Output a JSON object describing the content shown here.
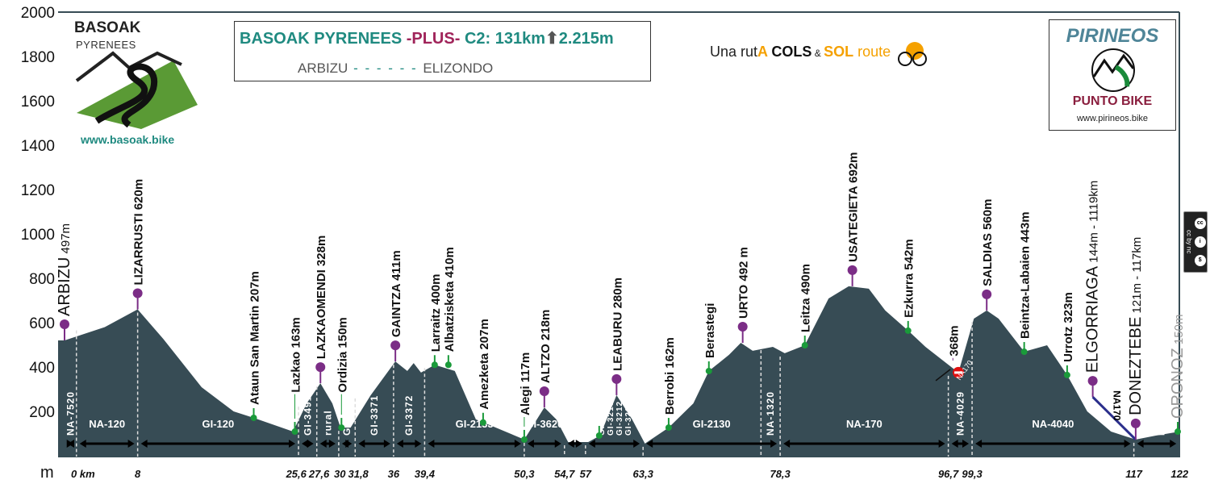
{
  "header": {
    "basoak_logo": {
      "name": "BASOAK",
      "sub": "PYRENEES",
      "url": "www.basoak.bike"
    },
    "title": {
      "part1": "BASOAK PYRENEES ",
      "plus": "-PLUS-",
      "part2": " C2: 131km",
      "arrow_icon": "up-arrow-icon",
      "part3": "2.215m"
    },
    "route": {
      "from": "ARBIZU",
      "dashes": " - - - - - - ",
      "to": "ELIZONDO"
    },
    "tagline": {
      "a": "Una rut",
      "b": "A ",
      "c": "COLS",
      "d": " & ",
      "e": "SOL",
      "f": " route"
    },
    "pirineos_logo": {
      "title": "PIRINEOS",
      "sub": "PUNTO BIKE",
      "url": "www.pirineos.bike"
    },
    "license_badge": {
      "text": "cc by nc",
      "icons": [
        "cc-icon",
        "by-icon",
        "nc-icon"
      ]
    }
  },
  "colors": {
    "profile": "#374c55",
    "summit": "#7b2d86",
    "town": "#1a9a3a",
    "teal": "#1f8a80",
    "plus": "#a0245a",
    "link": "#2b2f8c"
  },
  "chart_data": {
    "type": "area",
    "ylabel": "m",
    "xunit": "km",
    "ylim": [
      0,
      2000
    ],
    "xlim": [
      0,
      122
    ],
    "yticks": [
      200,
      400,
      600,
      800,
      1000,
      1200,
      1400,
      1600,
      1800,
      2000
    ],
    "xtick_labels": [
      {
        "km": 0,
        "label": "0 km"
      },
      {
        "km": 8,
        "label": "8"
      },
      {
        "km": 25.6,
        "label": "25,6"
      },
      {
        "km": 27.6,
        "label": "27,6"
      },
      {
        "km": 30,
        "label": "30"
      },
      {
        "km": 31.8,
        "label": "31,8"
      },
      {
        "km": 36,
        "label": "36"
      },
      {
        "km": 39.4,
        "label": "39,4"
      },
      {
        "km": 50.3,
        "label": "50,3"
      },
      {
        "km": 54.7,
        "label": "54,7"
      },
      {
        "km": 57,
        "label": "57"
      },
      {
        "km": 63.3,
        "label": "63,3"
      },
      {
        "km": 78.3,
        "label": "78,3"
      },
      {
        "km": 96.7,
        "label": "96,7"
      },
      {
        "km": 99.3,
        "label": "99,3"
      },
      {
        "km": 117,
        "label": "117"
      },
      {
        "km": 122,
        "label": "122"
      }
    ],
    "profile": {
      "km": [
        0,
        4.4,
        8,
        10.8,
        15,
        18.5,
        20.7,
        25,
        26.5,
        28,
        29.3,
        30.2,
        31.3,
        33.5,
        36.2,
        37.5,
        38.2,
        39,
        40.5,
        42.7,
        45,
        47.2,
        50.3,
        52.5,
        53.8,
        55.1,
        57.3,
        58.6,
        60.4,
        62.1,
        63.5,
        66.1,
        68.8,
        70.5,
        72.7,
        74,
        75.3,
        77.5,
        78.8,
        81,
        83.6,
        85.8,
        88,
        89.8,
        92.3,
        94.2,
        97.8,
        99.5,
        100.9,
        102.2,
        105,
        107.5,
        109.7,
        111.9,
        114.5,
        117.2,
        119.4,
        122
      ],
      "elevation": [
        520,
        580,
        660,
        527,
        309,
        200,
        171,
        109,
        236,
        327,
        236,
        127,
        127,
        273,
        425,
        382,
        418,
        375,
        410,
        382,
        164,
        127,
        73,
        218,
        164,
        62,
        62,
        91,
        273,
        164,
        55,
        127,
        236,
        382,
        455,
        509,
        473,
        491,
        462,
        498,
        709,
        764,
        753,
        655,
        564,
        491,
        375,
        618,
        655,
        618,
        469,
        498,
        364,
        200,
        109,
        73,
        91,
        109
      ]
    },
    "waypoints": [
      {
        "name": "ARBIZU",
        "alt": " 497m",
        "km": 0,
        "elev": 520,
        "kind": "summit",
        "style": "light"
      },
      {
        "name": "LIZARRUSTI",
        "alt": " 620m",
        "km": 8,
        "elev": 660,
        "kind": "summit",
        "style": "bold"
      },
      {
        "name": "Ataun San Martin",
        "alt": " 207m",
        "km": 20.7,
        "elev": 171,
        "kind": "town",
        "style": "bold"
      },
      {
        "name": "Lazkao",
        "alt": " 163m",
        "km": 25.2,
        "elev": 109,
        "kind": "town",
        "style": "bold"
      },
      {
        "name": "LAZKAOMENDI",
        "alt": " 328m",
        "km": 28,
        "elev": 327,
        "kind": "summit",
        "style": "bold"
      },
      {
        "name": "Ordizia",
        "alt": " 150m",
        "km": 30.3,
        "elev": 127,
        "kind": "town",
        "style": "bold"
      },
      {
        "name": "GAINTZA",
        "alt": " 411m",
        "km": 36.2,
        "elev": 425,
        "kind": "summit",
        "style": "bold"
      },
      {
        "name": "Larraitz",
        "alt": " 400m",
        "km": 40.5,
        "elev": 410,
        "kind": "town",
        "style": "bold"
      },
      {
        "name": "Albatzisketa",
        "alt": " 410m",
        "km": 42,
        "elev": 410,
        "kind": "town",
        "style": "bold"
      },
      {
        "name": "Amezketa",
        "alt": " 207m",
        "km": 45.8,
        "elev": 150,
        "kind": "town",
        "style": "bold"
      },
      {
        "name": "Alegi",
        "alt": " 117m",
        "km": 50.3,
        "elev": 73,
        "kind": "town",
        "style": "bold"
      },
      {
        "name": "ALTZO",
        "alt": " 218m",
        "km": 52.5,
        "elev": 218,
        "kind": "summit",
        "style": "bold"
      },
      {
        "name": "",
        "alt": "",
        "km": 58.5,
        "elev": 91,
        "kind": "town",
        "style": "bold"
      },
      {
        "name": "LEABURU",
        "alt": " 280m",
        "km": 60.4,
        "elev": 273,
        "kind": "summit",
        "style": "bold"
      },
      {
        "name": "Berrobi",
        "alt": " 162m",
        "km": 66.1,
        "elev": 127,
        "kind": "town",
        "style": "bold"
      },
      {
        "name": "Berastegi",
        "alt": "",
        "km": 70.5,
        "elev": 382,
        "kind": "town",
        "style": "bold"
      },
      {
        "name": "URTO",
        "alt": " 492 m",
        "km": 74.2,
        "elev": 509,
        "kind": "summit",
        "style": "bold"
      },
      {
        "name": "Leitza",
        "alt": " 490m",
        "km": 81,
        "elev": 498,
        "kind": "town",
        "style": "bold"
      },
      {
        "name": "USATEGIETA",
        "alt": "  692m",
        "km": 86.2,
        "elev": 764,
        "kind": "summit",
        "style": "bold"
      },
      {
        "name": "Ezkurra",
        "alt": " 542m",
        "km": 92.3,
        "elev": 564,
        "kind": "town",
        "style": "bold"
      },
      {
        "name": "368m",
        "alt": "",
        "km": 97.2,
        "elev": 400,
        "kind": "none",
        "style": "bold"
      },
      {
        "name": "SALDIAS",
        "alt": " 560m",
        "km": 100.9,
        "elev": 655,
        "kind": "summit",
        "style": "bold"
      },
      {
        "name": "Beintza-Labaien",
        "alt": " 443m",
        "km": 105,
        "elev": 469,
        "kind": "town",
        "style": "bold"
      },
      {
        "name": "Urrotz",
        "alt": " 323m",
        "km": 109.7,
        "elev": 364,
        "kind": "town",
        "style": "bold"
      },
      {
        "name": "ELGORRIAGA",
        "alt": " 144m - 1119km",
        "km": 112.5,
        "elev": 265,
        "kind": "summit",
        "style": "light"
      },
      {
        "name": "DONEZTEBE",
        "alt": " 121m - 117km",
        "km": 117.2,
        "elev": 73,
        "kind": "summit",
        "style": "light"
      },
      {
        "name": "ORONOZ",
        "alt": " 150m",
        "km": 121.8,
        "elev": 109,
        "kind": "town",
        "style": "gray"
      }
    ],
    "no_entry": {
      "km": 97.8,
      "elev": 375,
      "label": "NA170",
      "icon": "no-entry-icon"
    },
    "link_road": {
      "from_km": 112.5,
      "from_elev": 265,
      "to_km": 117.2,
      "to_elev": 73,
      "label": "NA170"
    },
    "roads": [
      {
        "from": 0,
        "to": 1.3,
        "label": "NA-7520",
        "vertical": true
      },
      {
        "from": 1.3,
        "to": 8,
        "label": "NA-120",
        "vertical": false
      },
      {
        "from": 8,
        "to": 25.6,
        "label": "GI-120",
        "vertical": false
      },
      {
        "from": 25.6,
        "to": 27.6,
        "label": "GI-3491",
        "vertical": true
      },
      {
        "from": 27.6,
        "to": 30,
        "label": "rural",
        "vertical": true
      },
      {
        "from": 30,
        "to": 31.8,
        "label": "GI-2133",
        "vertical": true
      },
      {
        "from": 31.8,
        "to": 36,
        "label": "GI-3371",
        "vertical": true
      },
      {
        "from": 36,
        "to": 39.4,
        "label": "GI-3372",
        "vertical": true
      },
      {
        "from": 39.4,
        "to": 50.3,
        "label": "GI-2133",
        "vertical": false
      },
      {
        "from": 50.3,
        "to": 54.7,
        "label": "GI-3620",
        "vertical": false
      },
      {
        "from": 54.7,
        "to": 57,
        "label": "GI-2135",
        "vertical": true
      },
      {
        "from": 57,
        "to": 63.3,
        "label": "GI-2130 GI-3210 GI-3212 GI-3211",
        "vertical": true
      },
      {
        "from": 63.3,
        "to": 78.3,
        "label": "GI-2130",
        "vertical": false
      },
      {
        "from": 76.2,
        "to": 78.3,
        "label": "NA-1320",
        "vertical": true,
        "no_arrow": true
      },
      {
        "from": 78.3,
        "to": 96.7,
        "label": "NA-170",
        "vertical": false
      },
      {
        "from": 96.7,
        "to": 99.3,
        "label": "NA-4029",
        "vertical": true
      },
      {
        "from": 99.3,
        "to": 117,
        "label": "NA-4040",
        "vertical": false
      },
      {
        "from": 117,
        "to": 122,
        "label": "NA170 NA-1210",
        "vertical": true
      }
    ]
  }
}
